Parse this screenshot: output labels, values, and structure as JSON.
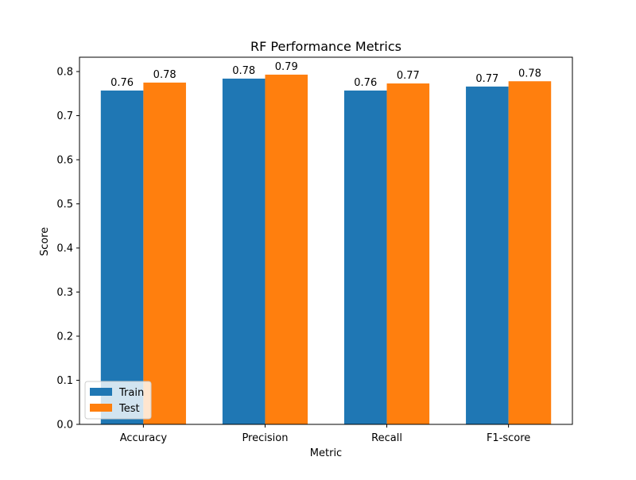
{
  "chart_data": {
    "type": "bar",
    "title": "RF Performance Metrics",
    "xlabel": "Metric",
    "ylabel": "Score",
    "categories": [
      "Accuracy",
      "Precision",
      "Recall",
      "F1-score"
    ],
    "series": [
      {
        "name": "Train",
        "color": "#1f77b4",
        "values": [
          0.757,
          0.784,
          0.757,
          0.766
        ],
        "labels": [
          "0.76",
          "0.78",
          "0.76",
          "0.77"
        ]
      },
      {
        "name": "Test",
        "color": "#ff7f0e",
        "values": [
          0.775,
          0.793,
          0.773,
          0.778
        ],
        "labels": [
          "0.78",
          "0.79",
          "0.77",
          "0.78"
        ]
      }
    ],
    "ylim": [
      0,
      0.8325
    ],
    "yticks": [
      0.0,
      0.1,
      0.2,
      0.3,
      0.4,
      0.5,
      0.6,
      0.7,
      0.8
    ],
    "ytick_labels": [
      "0.0",
      "0.1",
      "0.2",
      "0.3",
      "0.4",
      "0.5",
      "0.6",
      "0.7",
      "0.8"
    ],
    "legend_position": "lower-left",
    "grid": false
  }
}
